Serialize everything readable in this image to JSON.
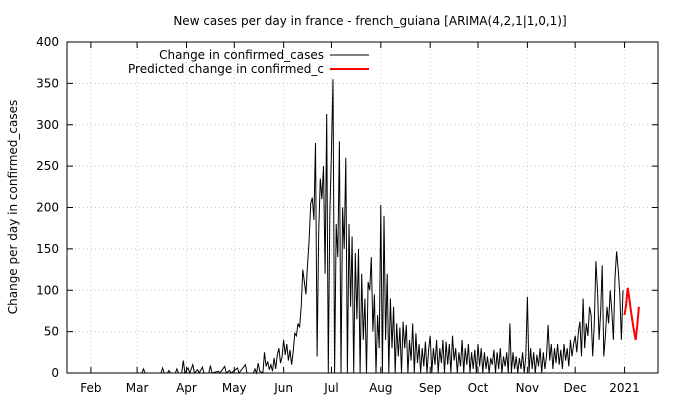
{
  "chart_data": {
    "type": "line",
    "title": "New cases per day in france - french_guiana [ARIMA(4,2,1|1,0,1)]",
    "ylabel": "Change per day in confirmed_cases",
    "xlabel": "",
    "ylim": [
      0,
      400
    ],
    "yticks": [
      0,
      50,
      100,
      150,
      200,
      250,
      300,
      350,
      400
    ],
    "xticks": [
      {
        "label": "Feb",
        "date": "2020-02-01"
      },
      {
        "label": "Mar",
        "date": "2020-03-01"
      },
      {
        "label": "Apr",
        "date": "2020-04-01"
      },
      {
        "label": "May",
        "date": "2020-05-01"
      },
      {
        "label": "Jun",
        "date": "2020-06-01"
      },
      {
        "label": "Jul",
        "date": "2020-07-01"
      },
      {
        "label": "Aug",
        "date": "2020-08-01"
      },
      {
        "label": "Sep",
        "date": "2020-09-01"
      },
      {
        "label": "Oct",
        "date": "2020-10-01"
      },
      {
        "label": "Nov",
        "date": "2020-11-01"
      },
      {
        "label": "Dec",
        "date": "2020-12-01"
      },
      {
        "label": "2021",
        "date": "2021-01-01"
      }
    ],
    "xlim": [
      "2020-01-17",
      "2021-01-22"
    ],
    "grid": true,
    "legend_position": "top-left",
    "series": [
      {
        "name": "Change in confirmed_cases",
        "color": "#000000",
        "points": [
          [
            "2020-01-17",
            0
          ],
          [
            "2020-03-04",
            0
          ],
          [
            "2020-03-05",
            5
          ],
          [
            "2020-03-06",
            0
          ],
          [
            "2020-03-16",
            0
          ],
          [
            "2020-03-17",
            6
          ],
          [
            "2020-03-18",
            0
          ],
          [
            "2020-03-20",
            0
          ],
          [
            "2020-03-21",
            3
          ],
          [
            "2020-03-22",
            0
          ],
          [
            "2020-03-25",
            0
          ],
          [
            "2020-03-26",
            5
          ],
          [
            "2020-03-27",
            0
          ],
          [
            "2020-03-29",
            0
          ],
          [
            "2020-03-30",
            15
          ],
          [
            "2020-03-31",
            0
          ],
          [
            "2020-04-02",
            6
          ],
          [
            "2020-04-03",
            0
          ],
          [
            "2020-04-05",
            10
          ],
          [
            "2020-04-06",
            0
          ],
          [
            "2020-04-08",
            4
          ],
          [
            "2020-04-09",
            0
          ],
          [
            "2020-04-11",
            7
          ],
          [
            "2020-04-12",
            0
          ],
          [
            "2020-04-15",
            0
          ],
          [
            "2020-04-16",
            9
          ],
          [
            "2020-04-17",
            0
          ],
          [
            "2020-04-21",
            2
          ],
          [
            "2020-04-22",
            0
          ],
          [
            "2020-04-25",
            8
          ],
          [
            "2020-04-26",
            0
          ],
          [
            "2020-04-28",
            3
          ],
          [
            "2020-04-29",
            0
          ],
          [
            "2020-05-03",
            6
          ],
          [
            "2020-05-04",
            0
          ],
          [
            "2020-05-08",
            10
          ],
          [
            "2020-05-09",
            0
          ],
          [
            "2020-05-13",
            0
          ],
          [
            "2020-05-14",
            5
          ],
          [
            "2020-05-15",
            0
          ],
          [
            "2020-05-16",
            12
          ],
          [
            "2020-05-17",
            2
          ],
          [
            "2020-05-19",
            0
          ],
          [
            "2020-05-20",
            25
          ],
          [
            "2020-05-21",
            8
          ],
          [
            "2020-05-22",
            14
          ],
          [
            "2020-05-23",
            4
          ],
          [
            "2020-05-24",
            10
          ],
          [
            "2020-05-25",
            2
          ],
          [
            "2020-05-26",
            18
          ],
          [
            "2020-05-27",
            5
          ],
          [
            "2020-05-28",
            22
          ],
          [
            "2020-05-29",
            30
          ],
          [
            "2020-05-30",
            12
          ],
          [
            "2020-05-31",
            20
          ],
          [
            "2020-06-01",
            40
          ],
          [
            "2020-06-02",
            22
          ],
          [
            "2020-06-03",
            35
          ],
          [
            "2020-06-04",
            15
          ],
          [
            "2020-06-05",
            28
          ],
          [
            "2020-06-06",
            10
          ],
          [
            "2020-06-07",
            26
          ],
          [
            "2020-06-08",
            48
          ],
          [
            "2020-06-09",
            45
          ],
          [
            "2020-06-10",
            60
          ],
          [
            "2020-06-11",
            55
          ],
          [
            "2020-06-12",
            80
          ],
          [
            "2020-06-13",
            125
          ],
          [
            "2020-06-14",
            110
          ],
          [
            "2020-06-15",
            95
          ],
          [
            "2020-06-16",
            130
          ],
          [
            "2020-06-17",
            160
          ],
          [
            "2020-06-18",
            205
          ],
          [
            "2020-06-19",
            212
          ],
          [
            "2020-06-20",
            185
          ],
          [
            "2020-06-21",
            278
          ],
          [
            "2020-06-22",
            20
          ],
          [
            "2020-06-23",
            170
          ],
          [
            "2020-06-24",
            235
          ],
          [
            "2020-06-25",
            210
          ],
          [
            "2020-06-26",
            250
          ],
          [
            "2020-06-27",
            120
          ],
          [
            "2020-06-28",
            313
          ],
          [
            "2020-06-29",
            0
          ],
          [
            "2020-06-30",
            190
          ],
          [
            "2020-07-01",
            265
          ],
          [
            "2020-07-02",
            355
          ],
          [
            "2020-07-03",
            0
          ],
          [
            "2020-07-04",
            180
          ],
          [
            "2020-07-05",
            140
          ],
          [
            "2020-07-06",
            280
          ],
          [
            "2020-07-07",
            0
          ],
          [
            "2020-07-08",
            200
          ],
          [
            "2020-07-09",
            150
          ],
          [
            "2020-07-10",
            260
          ],
          [
            "2020-07-11",
            0
          ],
          [
            "2020-07-12",
            180
          ],
          [
            "2020-07-13",
            80
          ],
          [
            "2020-07-14",
            165
          ],
          [
            "2020-07-15",
            0
          ],
          [
            "2020-07-16",
            145
          ],
          [
            "2020-07-17",
            65
          ],
          [
            "2020-07-18",
            150
          ],
          [
            "2020-07-19",
            0
          ],
          [
            "2020-07-20",
            120
          ],
          [
            "2020-07-21",
            40
          ],
          [
            "2020-07-22",
            90
          ],
          [
            "2020-07-23",
            0
          ],
          [
            "2020-07-24",
            110
          ],
          [
            "2020-07-25",
            100
          ],
          [
            "2020-07-26",
            140
          ],
          [
            "2020-07-27",
            50
          ],
          [
            "2020-07-28",
            95
          ],
          [
            "2020-07-29",
            0
          ],
          [
            "2020-07-30",
            70
          ],
          [
            "2020-07-31",
            30
          ],
          [
            "2020-08-01",
            203
          ],
          [
            "2020-08-02",
            0
          ],
          [
            "2020-08-03",
            190
          ],
          [
            "2020-08-04",
            40
          ],
          [
            "2020-08-05",
            120
          ],
          [
            "2020-08-06",
            0
          ],
          [
            "2020-08-07",
            90
          ],
          [
            "2020-08-08",
            30
          ],
          [
            "2020-08-09",
            80
          ],
          [
            "2020-08-10",
            0
          ],
          [
            "2020-08-11",
            60
          ],
          [
            "2020-08-12",
            20
          ],
          [
            "2020-08-13",
            55
          ],
          [
            "2020-08-14",
            0
          ],
          [
            "2020-08-15",
            62
          ],
          [
            "2020-08-16",
            30
          ],
          [
            "2020-08-17",
            58
          ],
          [
            "2020-08-18",
            0
          ],
          [
            "2020-08-19",
            40
          ],
          [
            "2020-08-20",
            15
          ],
          [
            "2020-08-21",
            60
          ],
          [
            "2020-08-22",
            0
          ],
          [
            "2020-08-23",
            48
          ],
          [
            "2020-08-24",
            12
          ],
          [
            "2020-08-25",
            35
          ],
          [
            "2020-08-26",
            0
          ],
          [
            "2020-08-27",
            30
          ],
          [
            "2020-08-28",
            8
          ],
          [
            "2020-08-29",
            38
          ],
          [
            "2020-08-30",
            0
          ],
          [
            "2020-08-31",
            28
          ],
          [
            "2020-09-01",
            45
          ],
          [
            "2020-09-02",
            0
          ],
          [
            "2020-09-03",
            30
          ],
          [
            "2020-09-04",
            10
          ],
          [
            "2020-09-05",
            40
          ],
          [
            "2020-09-06",
            0
          ],
          [
            "2020-09-07",
            30
          ],
          [
            "2020-09-08",
            12
          ],
          [
            "2020-09-09",
            40
          ],
          [
            "2020-09-10",
            0
          ],
          [
            "2020-09-11",
            38
          ],
          [
            "2020-09-12",
            10
          ],
          [
            "2020-09-13",
            35
          ],
          [
            "2020-09-14",
            0
          ],
          [
            "2020-09-15",
            45
          ],
          [
            "2020-09-16",
            15
          ],
          [
            "2020-09-17",
            30
          ],
          [
            "2020-09-18",
            0
          ],
          [
            "2020-09-19",
            25
          ],
          [
            "2020-09-20",
            8
          ],
          [
            "2020-09-21",
            40
          ],
          [
            "2020-09-22",
            0
          ],
          [
            "2020-09-23",
            30
          ],
          [
            "2020-09-24",
            10
          ],
          [
            "2020-09-25",
            35
          ],
          [
            "2020-09-26",
            0
          ],
          [
            "2020-09-27",
            25
          ],
          [
            "2020-09-28",
            5
          ],
          [
            "2020-09-29",
            28
          ],
          [
            "2020-09-30",
            0
          ],
          [
            "2020-10-01",
            35
          ],
          [
            "2020-10-02",
            8
          ],
          [
            "2020-10-03",
            30
          ],
          [
            "2020-10-04",
            0
          ],
          [
            "2020-10-05",
            25
          ],
          [
            "2020-10-06",
            5
          ],
          [
            "2020-10-07",
            20
          ],
          [
            "2020-10-08",
            0
          ],
          [
            "2020-10-09",
            18
          ],
          [
            "2020-10-10",
            10
          ],
          [
            "2020-10-11",
            28
          ],
          [
            "2020-10-12",
            0
          ],
          [
            "2020-10-13",
            25
          ],
          [
            "2020-10-14",
            5
          ],
          [
            "2020-10-15",
            30
          ],
          [
            "2020-10-16",
            0
          ],
          [
            "2020-10-17",
            20
          ],
          [
            "2020-10-18",
            8
          ],
          [
            "2020-10-19",
            25
          ],
          [
            "2020-10-20",
            0
          ],
          [
            "2020-10-21",
            60
          ],
          [
            "2020-10-22",
            0
          ],
          [
            "2020-10-23",
            25
          ],
          [
            "2020-10-24",
            5
          ],
          [
            "2020-10-25",
            20
          ],
          [
            "2020-10-26",
            0
          ],
          [
            "2020-10-27",
            18
          ],
          [
            "2020-10-28",
            5
          ],
          [
            "2020-10-29",
            25
          ],
          [
            "2020-10-30",
            0
          ],
          [
            "2020-10-31",
            20
          ],
          [
            "2020-11-01",
            92
          ],
          [
            "2020-11-02",
            0
          ],
          [
            "2020-11-03",
            30
          ],
          [
            "2020-11-04",
            5
          ],
          [
            "2020-11-05",
            25
          ],
          [
            "2020-11-06",
            0
          ],
          [
            "2020-11-07",
            22
          ],
          [
            "2020-11-08",
            8
          ],
          [
            "2020-11-09",
            30
          ],
          [
            "2020-11-10",
            0
          ],
          [
            "2020-11-11",
            25
          ],
          [
            "2020-11-12",
            5
          ],
          [
            "2020-11-13",
            20
          ],
          [
            "2020-11-14",
            58
          ],
          [
            "2020-11-15",
            15
          ],
          [
            "2020-11-16",
            35
          ],
          [
            "2020-11-17",
            5
          ],
          [
            "2020-11-18",
            30
          ],
          [
            "2020-11-19",
            12
          ],
          [
            "2020-11-20",
            35
          ],
          [
            "2020-11-21",
            10
          ],
          [
            "2020-11-22",
            28
          ],
          [
            "2020-11-23",
            5
          ],
          [
            "2020-11-24",
            35
          ],
          [
            "2020-11-25",
            15
          ],
          [
            "2020-11-26",
            30
          ],
          [
            "2020-11-27",
            8
          ],
          [
            "2020-11-28",
            40
          ],
          [
            "2020-11-29",
            20
          ],
          [
            "2020-11-30",
            35
          ],
          [
            "2020-12-01",
            45
          ],
          [
            "2020-12-02",
            25
          ],
          [
            "2020-12-03",
            50
          ],
          [
            "2020-12-04",
            62
          ],
          [
            "2020-12-05",
            20
          ],
          [
            "2020-12-06",
            90
          ],
          [
            "2020-12-07",
            30
          ],
          [
            "2020-12-08",
            60
          ],
          [
            "2020-12-09",
            45
          ],
          [
            "2020-12-10",
            80
          ],
          [
            "2020-12-11",
            70
          ],
          [
            "2020-12-12",
            20
          ],
          [
            "2020-12-13",
            60
          ],
          [
            "2020-12-14",
            135
          ],
          [
            "2020-12-15",
            100
          ],
          [
            "2020-12-16",
            40
          ],
          [
            "2020-12-17",
            75
          ],
          [
            "2020-12-18",
            130
          ],
          [
            "2020-12-19",
            20
          ],
          [
            "2020-12-20",
            45
          ],
          [
            "2020-12-21",
            80
          ],
          [
            "2020-12-22",
            60
          ],
          [
            "2020-12-23",
            100
          ],
          [
            "2020-12-24",
            75
          ],
          [
            "2020-12-25",
            40
          ],
          [
            "2020-12-26",
            115
          ],
          [
            "2020-12-27",
            147
          ],
          [
            "2020-12-28",
            125
          ],
          [
            "2020-12-29",
            95
          ],
          [
            "2020-12-30",
            40
          ],
          [
            "2020-12-31",
            100
          ]
        ]
      },
      {
        "name": "Predicted change in confirmed_c",
        "color": "#ff0000",
        "points": [
          [
            "2021-01-01",
            70
          ],
          [
            "2021-01-02",
            82
          ],
          [
            "2021-01-03",
            103
          ],
          [
            "2021-01-04",
            90
          ],
          [
            "2021-01-05",
            75
          ],
          [
            "2021-01-06",
            62
          ],
          [
            "2021-01-07",
            50
          ],
          [
            "2021-01-08",
            40
          ],
          [
            "2021-01-09",
            58
          ],
          [
            "2021-01-10",
            80
          ]
        ]
      }
    ]
  }
}
